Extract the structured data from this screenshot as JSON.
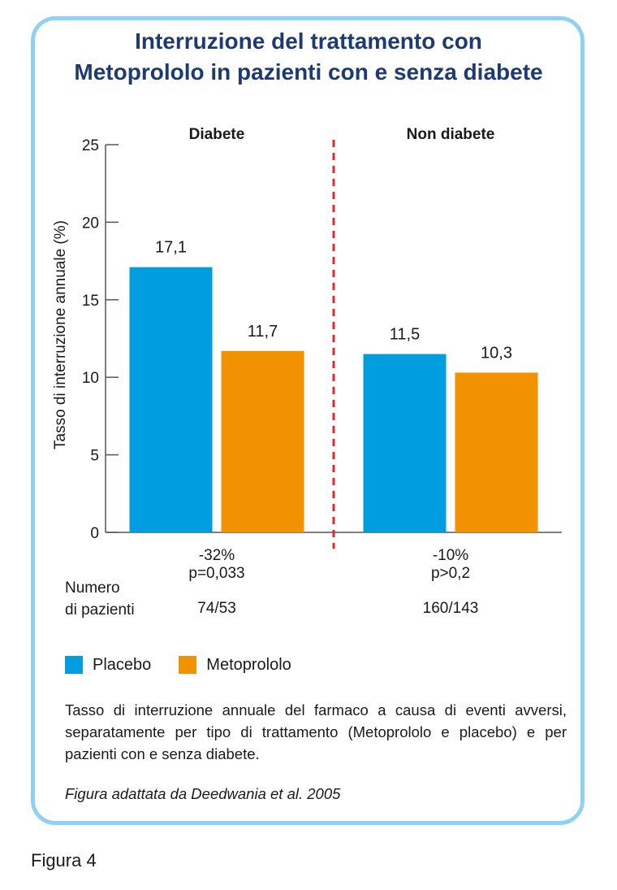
{
  "title_line1": "Interruzione del trattamento con",
  "title_line2": "Metoprololo in pazienti con e senza diabete",
  "figure_label": "Figura 4",
  "caption": "Tasso di interruzione annuale del farmaco a causa di eventi avversi, separatamente per tipo di trattamento (Metoprololo e placebo) e per pazienti con e senza diabete.",
  "source": "Figura adattata da Deedwania et al. 2005",
  "patients_label_line1": "Numero",
  "patients_label_line2": "di pazienti",
  "colors": {
    "placebo": "#009de0",
    "metoprololo": "#f39200",
    "divider": "#e2262e",
    "title": "#1d3a73",
    "border": "#8fd1f2"
  },
  "chart_data": {
    "type": "bar",
    "ylabel": "Tasso di interruzione annuale (%)",
    "ylim": [
      0,
      25
    ],
    "yticks": [
      0,
      5,
      10,
      15,
      20,
      25
    ],
    "legend_placement": "bottom",
    "groups": [
      {
        "name": "Diabete",
        "change": "-32%",
        "pvalue": "p=0,033",
        "patients": "74/53",
        "bars": [
          {
            "series": "Placebo",
            "value": 17.1,
            "label": "17,1"
          },
          {
            "series": "Metoprololo",
            "value": 11.7,
            "label": "11,7"
          }
        ]
      },
      {
        "name": "Non diabete",
        "change": "-10%",
        "pvalue": "p>0,2",
        "patients": "160/143",
        "bars": [
          {
            "series": "Placebo",
            "value": 11.5,
            "label": "11,5"
          },
          {
            "series": "Metoprololo",
            "value": 10.3,
            "label": "10,3"
          }
        ]
      }
    ],
    "series": [
      {
        "name": "Placebo"
      },
      {
        "name": "Metoprololo"
      }
    ]
  }
}
